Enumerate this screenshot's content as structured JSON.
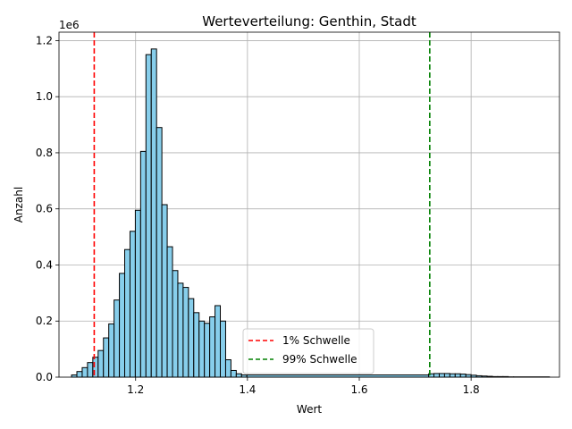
{
  "chart_data": {
    "type": "bar",
    "title": "Werteverteilung: Genthin, Stadt",
    "xlabel": "Wert",
    "ylabel": "Anzahl",
    "y_offset_label": "1e6",
    "xlim": [
      1.063,
      1.958
    ],
    "ylim": [
      0,
      1.23
    ],
    "grid": true,
    "legend_position": "lower-center",
    "bin_width": 0.0095,
    "bins_start": [
      1.0855,
      1.095,
      1.1045,
      1.114,
      1.1235,
      1.133,
      1.1425,
      1.152,
      1.1615,
      1.171,
      1.1805,
      1.19,
      1.1995,
      1.209,
      1.2185,
      1.228,
      1.2375,
      1.247,
      1.2565,
      1.266,
      1.2755,
      1.285,
      1.2945,
      1.304,
      1.3135,
      1.323,
      1.3325,
      1.342,
      1.3515,
      1.361,
      1.3705,
      1.38,
      1.3895,
      1.724,
      1.7335,
      1.743,
      1.7525,
      1.762,
      1.7715,
      1.781,
      1.7905,
      1.8,
      1.8095,
      1.819,
      1.8285,
      1.838,
      1.8475,
      1.857,
      1.8665
    ],
    "counts_millions": [
      0.008,
      0.02,
      0.034,
      0.052,
      0.071,
      0.095,
      0.14,
      0.19,
      0.275,
      0.37,
      0.455,
      0.52,
      0.595,
      0.805,
      1.15,
      1.17,
      0.89,
      0.615,
      0.465,
      0.38,
      0.335,
      0.32,
      0.28,
      0.23,
      0.2,
      0.192,
      0.215,
      0.255,
      0.2,
      0.062,
      0.024,
      0.012,
      0.008,
      0.012,
      0.013,
      0.013,
      0.013,
      0.012,
      0.012,
      0.011,
      0.009,
      0.007,
      0.005,
      0.004,
      0.003,
      0.002,
      0.002,
      0.002,
      0.001
    ],
    "flat_segment": {
      "x_start": 1.399,
      "x_end": 1.724,
      "count_millions": 0.008
    },
    "tail_segment": {
      "x_start": 1.876,
      "x_end": 1.94,
      "count_millions": 0.001
    },
    "bar_color": "#87ceeb",
    "bar_edge_color": "#000000",
    "x_ticks": [
      "1.2",
      "1.4",
      "1.6",
      "1.8"
    ],
    "x_tick_values": [
      1.2,
      1.4,
      1.6,
      1.8
    ],
    "y_ticks": [
      "0.0",
      "0.2",
      "0.4",
      "0.6",
      "0.8",
      "1.0",
      "1.2"
    ],
    "y_tick_values": [
      0.0,
      0.2,
      0.4,
      0.6,
      0.8,
      1.0,
      1.2
    ],
    "thresholds": [
      {
        "label": "1% Schwelle",
        "x": 1.126,
        "color": "#ff0000"
      },
      {
        "label": "99% Schwelle",
        "x": 1.726,
        "color": "#008000"
      }
    ]
  }
}
